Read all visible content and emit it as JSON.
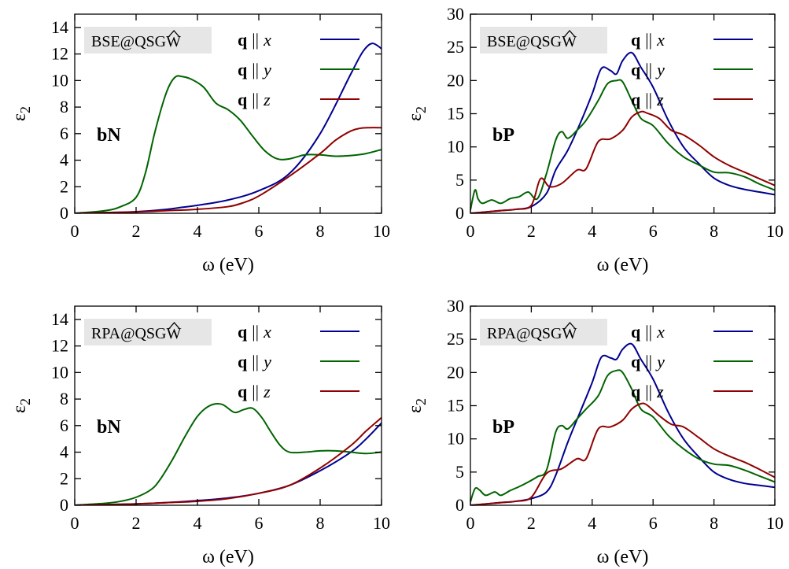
{
  "chart_data": [
    {
      "type": "line",
      "panel": "bN",
      "method": "BSE@QSGW",
      "xlabel": "ω (eV)",
      "ylabel": "ε2",
      "xlim": [
        0,
        10
      ],
      "ylim": [
        0,
        15
      ],
      "xticks": [
        0,
        2,
        4,
        6,
        8,
        10
      ],
      "yticks": [
        0,
        2,
        4,
        6,
        8,
        10,
        12,
        14
      ],
      "legend_position": "top-right",
      "series": [
        {
          "name": "q || x",
          "color": "#000090",
          "x": [
            0,
            1,
            2,
            3,
            3.5,
            4,
            5,
            6,
            7,
            8,
            9,
            9.4,
            9.7,
            10
          ],
          "y": [
            0,
            0.05,
            0.12,
            0.3,
            0.45,
            0.6,
            1,
            1.7,
            3,
            6,
            10.5,
            12.2,
            12.8,
            12.4
          ]
        },
        {
          "name": "q || y",
          "color": "#006400",
          "x": [
            0,
            1,
            1.5,
            2,
            2.3,
            2.6,
            2.9,
            3.1,
            3.3,
            3.5,
            3.8,
            4.2,
            4.6,
            5,
            5.4,
            5.8,
            6.2,
            6.6,
            7,
            7.5,
            8,
            8.5,
            9,
            9.5,
            10
          ],
          "y": [
            0,
            0.2,
            0.5,
            1.2,
            3,
            6,
            8.5,
            9.7,
            10.3,
            10.3,
            10.1,
            9.5,
            8.3,
            7.8,
            7,
            5.8,
            4.7,
            4.1,
            4.1,
            4.4,
            4.4,
            4.3,
            4.35,
            4.5,
            4.8
          ]
        },
        {
          "name": "q || z",
          "color": "#900000",
          "x": [
            0,
            1,
            2,
            3,
            4,
            5,
            5.5,
            6,
            7,
            8,
            8.5,
            9,
            9.3,
            9.6,
            10
          ],
          "y": [
            0,
            0.05,
            0.1,
            0.2,
            0.3,
            0.5,
            0.8,
            1.3,
            2.8,
            4.5,
            5.5,
            6.2,
            6.4,
            6.45,
            6.45
          ]
        }
      ]
    },
    {
      "type": "line",
      "panel": "bP",
      "method": "BSE@QSGW",
      "xlabel": "ω (eV)",
      "ylabel": "ε2",
      "xlim": [
        0,
        10
      ],
      "ylim": [
        0,
        30
      ],
      "xticks": [
        0,
        2,
        4,
        6,
        8,
        10
      ],
      "yticks": [
        0,
        5,
        10,
        15,
        20,
        25,
        30
      ],
      "legend_position": "top-right",
      "series": [
        {
          "name": "q || x",
          "color": "#000090",
          "x": [
            0,
            0.5,
            1,
            1.5,
            2,
            2.5,
            2.8,
            3.2,
            3.6,
            4,
            4.3,
            4.6,
            4.8,
            5,
            5.3,
            5.6,
            6,
            6.5,
            7,
            7.5,
            8,
            8.5,
            9,
            9.5,
            10
          ],
          "y": [
            0,
            0.2,
            0.4,
            0.6,
            1,
            3,
            6.5,
            9.5,
            13.5,
            18,
            21.8,
            21.5,
            21,
            23,
            24.2,
            22,
            19,
            14,
            10,
            7.5,
            5.3,
            4.2,
            3.6,
            3.2,
            2.8
          ]
        },
        {
          "name": "q || y",
          "color": "#006400",
          "x": [
            0,
            0.15,
            0.25,
            0.4,
            0.7,
            1,
            1.3,
            1.6,
            1.9,
            2.2,
            2.5,
            2.8,
            3,
            3.2,
            3.5,
            3.8,
            4.2,
            4.5,
            4.8,
            5,
            5.3,
            5.6,
            6,
            6.5,
            7,
            7.5,
            8,
            8.5,
            9,
            9.5,
            10
          ],
          "y": [
            0.5,
            3.5,
            2.2,
            1.5,
            2,
            1.5,
            2.2,
            2.5,
            3.2,
            2.2,
            6,
            11,
            12.3,
            11.3,
            12.5,
            14,
            17,
            19.5,
            20,
            19.8,
            17,
            14.3,
            13.2,
            10.5,
            8.5,
            7.3,
            6.2,
            6.1,
            5.5,
            4.4,
            3.5
          ]
        },
        {
          "name": "q || z",
          "color": "#900000",
          "x": [
            0,
            0.5,
            1,
            1.5,
            2,
            2.3,
            2.6,
            3,
            3.5,
            3.8,
            4.2,
            4.6,
            5,
            5.3,
            5.6,
            5.8,
            6.2,
            6.6,
            7,
            7.5,
            8,
            8.5,
            9,
            9.5,
            10
          ],
          "y": [
            0,
            0.2,
            0.4,
            0.6,
            1.2,
            5.2,
            4,
            4.5,
            6.5,
            6.7,
            10.8,
            11.2,
            12.5,
            14.5,
            15.3,
            15.1,
            14.3,
            12.5,
            11.8,
            10.3,
            8.5,
            7.2,
            6.2,
            5.2,
            4.2
          ]
        }
      ]
    },
    {
      "type": "line",
      "panel": "bN",
      "method": "RPA@QSGW",
      "xlabel": "ω (eV)",
      "ylabel": "ε2",
      "xlim": [
        0,
        10
      ],
      "ylim": [
        0,
        15
      ],
      "xticks": [
        0,
        2,
        4,
        6,
        8,
        10
      ],
      "yticks": [
        0,
        2,
        4,
        6,
        8,
        10,
        12,
        14
      ],
      "legend_position": "top-right",
      "series": [
        {
          "name": "q || x",
          "color": "#000090",
          "x": [
            0,
            1,
            2,
            3,
            4,
            5,
            6,
            7,
            8,
            9,
            9.5,
            10
          ],
          "y": [
            0,
            0.05,
            0.1,
            0.2,
            0.35,
            0.55,
            0.9,
            1.5,
            2.6,
            4,
            5,
            6.2
          ]
        },
        {
          "name": "q || y",
          "color": "#006400",
          "x": [
            0,
            1,
            1.5,
            2,
            2.5,
            2.8,
            3.2,
            3.6,
            4,
            4.4,
            4.8,
            5.2,
            5.5,
            5.8,
            6.1,
            6.4,
            6.7,
            7,
            7.5,
            8,
            8.5,
            9,
            9.5,
            10
          ],
          "y": [
            0,
            0.15,
            0.3,
            0.6,
            1.2,
            2,
            3.5,
            5.2,
            6.7,
            7.5,
            7.6,
            7,
            7.2,
            7.3,
            6.6,
            5.5,
            4.5,
            4,
            4,
            4.1,
            4.1,
            4,
            3.9,
            4
          ]
        },
        {
          "name": "q || z",
          "color": "#900000",
          "x": [
            0,
            1,
            2,
            3,
            4,
            5,
            6,
            7,
            8,
            9,
            9.5,
            10
          ],
          "y": [
            0,
            0.05,
            0.1,
            0.2,
            0.3,
            0.5,
            0.9,
            1.5,
            2.8,
            4.5,
            5.6,
            6.6
          ]
        }
      ]
    },
    {
      "type": "line",
      "panel": "bP",
      "method": "RPA@QSGW",
      "xlabel": "ω (eV)",
      "ylabel": "ε2",
      "xlim": [
        0,
        10
      ],
      "ylim": [
        0,
        30
      ],
      "xticks": [
        0,
        2,
        4,
        6,
        8,
        10
      ],
      "yticks": [
        0,
        5,
        10,
        15,
        20,
        25,
        30
      ],
      "legend_position": "top-right",
      "series": [
        {
          "name": "q || x",
          "color": "#000090",
          "x": [
            0,
            0.5,
            1,
            1.5,
            2,
            2.5,
            2.8,
            3.2,
            3.6,
            4,
            4.3,
            4.6,
            4.8,
            5,
            5.3,
            5.6,
            6,
            6.5,
            7,
            7.5,
            8,
            8.5,
            9,
            9.5,
            10
          ],
          "y": [
            0,
            0.2,
            0.4,
            0.6,
            1,
            2,
            4.5,
            9.5,
            14,
            18.5,
            22.3,
            22.2,
            22,
            23.5,
            24.3,
            22,
            19,
            14,
            10,
            7.3,
            5,
            3.9,
            3.3,
            3,
            2.7
          ]
        },
        {
          "name": "q || y",
          "color": "#006400",
          "x": [
            0,
            0.15,
            0.3,
            0.5,
            0.8,
            1,
            1.3,
            1.6,
            1.9,
            2.2,
            2.5,
            2.8,
            3,
            3.2,
            3.5,
            3.8,
            4.2,
            4.5,
            4.8,
            5,
            5.3,
            5.6,
            6,
            6.5,
            7,
            7.5,
            8,
            8.5,
            9,
            9.5,
            10
          ],
          "y": [
            0.5,
            2.5,
            2.3,
            1.5,
            2,
            1.5,
            2.2,
            2.8,
            3.5,
            4.3,
            5.3,
            11,
            12,
            11.5,
            13,
            14.5,
            16.5,
            19.5,
            20.3,
            20,
            17.5,
            14.5,
            13.3,
            10.5,
            8.5,
            7,
            6.2,
            6,
            5.3,
            4.4,
            3.5
          ]
        },
        {
          "name": "q || z",
          "color": "#900000",
          "x": [
            0,
            0.5,
            1,
            1.5,
            2,
            2.5,
            3,
            3.5,
            3.8,
            4.2,
            4.6,
            5,
            5.3,
            5.6,
            5.8,
            6.2,
            6.6,
            7,
            7.5,
            8,
            8.5,
            9,
            9.5,
            10
          ],
          "y": [
            0,
            0.2,
            0.4,
            0.6,
            1.2,
            4.8,
            5.5,
            7,
            7,
            11.5,
            11.8,
            12.8,
            14.5,
            15.3,
            15.1,
            13.5,
            12.2,
            11.8,
            10.2,
            8.5,
            7.4,
            6.5,
            5.4,
            4.2
          ]
        }
      ]
    }
  ]
}
